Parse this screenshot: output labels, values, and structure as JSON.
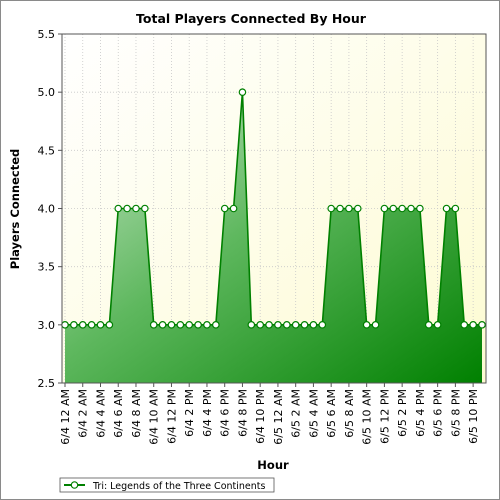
{
  "chart_data": {
    "type": "area",
    "title": "Total Players Connected By Hour",
    "xlabel": "Hour",
    "ylabel": "Players Connected",
    "ylim": [
      2.5,
      5.5
    ],
    "yticks": [
      "2.5",
      "3.0",
      "3.5",
      "4.0",
      "4.5",
      "5.0",
      "5.5"
    ],
    "x_tick_labels": [
      "6/4 12 AM",
      "6/4 2 AM",
      "6/4 4 AM",
      "6/4 6 AM",
      "6/4 8 AM",
      "6/4 10 AM",
      "6/4 12 PM",
      "6/4 2 PM",
      "6/4 4 PM",
      "6/4 6 PM",
      "6/4 8 PM",
      "6/4 10 PM",
      "6/5 12 AM",
      "6/5 2 AM",
      "6/5 4 AM",
      "6/5 6 AM",
      "6/5 8 AM",
      "6/5 10 AM",
      "6/5 12 PM",
      "6/5 2 PM",
      "6/5 4 PM",
      "6/5 6 PM",
      "6/5 8 PM",
      "6/5 10 PM"
    ],
    "grid": true,
    "legend_position": "bottom-left",
    "series": [
      {
        "name": "Tri: Legends of the Three Continents",
        "color": "#008000",
        "x": [
          "6/4 12 AM",
          "6/4 1 AM",
          "6/4 2 AM",
          "6/4 3 AM",
          "6/4 4 AM",
          "6/4 5 AM",
          "6/4 6 AM",
          "6/4 7 AM",
          "6/4 8 AM",
          "6/4 9 AM",
          "6/4 10 AM",
          "6/4 11 AM",
          "6/4 12 PM",
          "6/4 1 PM",
          "6/4 2 PM",
          "6/4 3 PM",
          "6/4 4 PM",
          "6/4 5 PM",
          "6/4 6 PM",
          "6/4 7 PM",
          "6/4 8 PM",
          "6/4 9 PM",
          "6/4 10 PM",
          "6/4 11 PM",
          "6/5 12 AM",
          "6/5 1 AM",
          "6/5 2 AM",
          "6/5 3 AM",
          "6/5 4 AM",
          "6/5 5 AM",
          "6/5 6 AM",
          "6/5 7 AM",
          "6/5 8 AM",
          "6/5 9 AM",
          "6/5 10 AM",
          "6/5 11 AM",
          "6/5 12 PM",
          "6/5 1 PM",
          "6/5 2 PM",
          "6/5 3 PM",
          "6/5 4 PM",
          "6/5 5 PM",
          "6/5 6 PM",
          "6/5 7 PM",
          "6/5 8 PM",
          "6/5 9 PM",
          "6/5 10 PM",
          "6/5 11 PM"
        ],
        "values": [
          3,
          3,
          3,
          3,
          3,
          3,
          4,
          4,
          4,
          4,
          3,
          3,
          3,
          3,
          3,
          3,
          3,
          3,
          4,
          4,
          5,
          3,
          3,
          3,
          3,
          3,
          3,
          3,
          3,
          3,
          4,
          4,
          4,
          4,
          3,
          3,
          4,
          4,
          4,
          4,
          4,
          3,
          3,
          4,
          4,
          3,
          3,
          3
        ]
      }
    ]
  }
}
